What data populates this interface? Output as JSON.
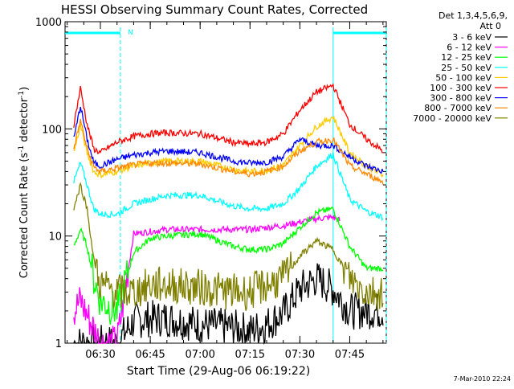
{
  "chart_data": {
    "type": "line",
    "title": "HESSI Observing Summary Count Rates, Corrected",
    "xlabel": "Start Time (29-Aug-06 06:19:22)",
    "ylabel": "Corrected Count Rate (s",
    "ylabel_sup1": "-1",
    "ylabel_mid": " detector",
    "ylabel_sup2": "-1",
    "ylabel_end": ")",
    "yscale": "log",
    "ylim": [
      1,
      1000
    ],
    "xlim": [
      "06:19:22",
      "07:56:00"
    ],
    "x_ticks": [
      "06:30",
      "06:45",
      "07:00",
      "07:15",
      "07:30",
      "07:45"
    ],
    "y_ticks": [
      "1",
      "10",
      "100",
      "1000"
    ],
    "legend_header": [
      "Det 1,3,4,5,6,9,",
      "Att 0"
    ],
    "legend_position": "right",
    "footer_date": "7-Mar-2010 22:24",
    "flag_label": "N",
    "colors": {
      "axes": "#000000",
      "flag": "#00ffff"
    },
    "series": [
      {
        "name": "3 - 6 keV",
        "color": "#000000",
        "x": [
          "06:22",
          "06:30",
          "06:35",
          "06:40",
          "06:45",
          "06:50",
          "07:00",
          "07:10",
          "07:15",
          "07:20",
          "07:25",
          "07:30",
          "07:35",
          "07:40",
          "07:45",
          "07:50",
          "07:55"
        ],
        "values": [
          1.0,
          1.0,
          1.0,
          1.6,
          1.7,
          1.7,
          1.5,
          1.4,
          1.3,
          1.5,
          1.9,
          3.2,
          4.0,
          3.2,
          2.0,
          2.0,
          2.0
        ]
      },
      {
        "name": "6 - 12 keV",
        "color": "#ff00ff",
        "x": [
          "06:22",
          "06:24",
          "06:30",
          "06:35",
          "06:40",
          "06:45",
          "06:50",
          "07:00",
          "07:10",
          "07:15",
          "07:20",
          "07:25",
          "07:30",
          "07:35",
          "07:40",
          "07:42"
        ],
        "values": [
          2.0,
          2.5,
          1.0,
          1.0,
          10.5,
          11.0,
          11.5,
          11.5,
          11.5,
          11.5,
          12.0,
          12.5,
          13.5,
          14.5,
          15.0,
          14.0
        ]
      },
      {
        "name": "12 - 25 keV",
        "color": "#00ff00",
        "x": [
          "06:22",
          "06:24",
          "06:26",
          "06:28",
          "06:30",
          "06:35",
          "06:40",
          "06:45",
          "06:50",
          "07:00",
          "07:10",
          "07:15",
          "07:20",
          "07:25",
          "07:30",
          "07:35",
          "07:40",
          "07:45",
          "07:50",
          "07:55"
        ],
        "values": [
          8.0,
          11.5,
          8.0,
          4.0,
          2.5,
          2.0,
          7.0,
          9.5,
          10.0,
          10.5,
          8.0,
          7.5,
          7.5,
          8.5,
          12.0,
          16.5,
          18.0,
          8.0,
          5.0,
          5.0
        ]
      },
      {
        "name": "25 - 50 keV",
        "color": "#00ffff",
        "x": [
          "06:22",
          "06:24",
          "06:26",
          "06:28",
          "06:30",
          "06:35",
          "06:40",
          "06:45",
          "06:50",
          "07:00",
          "07:10",
          "07:15",
          "07:20",
          "07:25",
          "07:30",
          "07:35",
          "07:40",
          "07:45",
          "07:50",
          "07:55"
        ],
        "values": [
          32,
          48,
          30,
          18,
          16,
          16,
          20,
          22,
          24,
          24,
          19,
          18,
          18,
          20,
          28,
          45,
          58,
          22,
          17,
          15
        ]
      },
      {
        "name": "50 - 100 keV",
        "color": "#ffcc00",
        "x": [
          "06:22",
          "06:24",
          "06:26",
          "06:28",
          "06:30",
          "06:35",
          "06:40",
          "06:45",
          "06:50",
          "07:00",
          "07:10",
          "07:15",
          "07:20",
          "07:25",
          "07:30",
          "07:35",
          "07:40",
          "07:45",
          "07:50",
          "07:55"
        ],
        "values": [
          60,
          108,
          60,
          40,
          37,
          40,
          45,
          48,
          50,
          50,
          42,
          40,
          41,
          46,
          70,
          105,
          130,
          60,
          45,
          37
        ]
      },
      {
        "name": "100 - 300 keV",
        "color": "#ff0000",
        "x": [
          "06:22",
          "06:24",
          "06:26",
          "06:28",
          "06:30",
          "06:35",
          "06:40",
          "06:45",
          "06:50",
          "07:00",
          "07:10",
          "07:15",
          "07:20",
          "07:25",
          "07:30",
          "07:35",
          "07:40",
          "07:45",
          "07:50",
          "07:55"
        ],
        "values": [
          110,
          240,
          110,
          65,
          60,
          75,
          85,
          90,
          92,
          90,
          75,
          72,
          75,
          90,
          150,
          220,
          255,
          110,
          80,
          62
        ]
      },
      {
        "name": "300 - 800 keV",
        "color": "#0000ff",
        "x": [
          "06:22",
          "06:24",
          "06:26",
          "06:28",
          "06:30",
          "06:35",
          "06:40",
          "06:45",
          "06:50",
          "07:00",
          "07:10",
          "07:15",
          "07:20",
          "07:25",
          "07:30",
          "07:35",
          "07:40",
          "07:45",
          "07:50",
          "07:55"
        ],
        "values": [
          80,
          165,
          80,
          48,
          45,
          52,
          57,
          60,
          62,
          60,
          50,
          48,
          49,
          55,
          80,
          70,
          70,
          55,
          45,
          40
        ]
      },
      {
        "name": "800 - 7000 keV",
        "color": "#ff8800",
        "x": [
          "06:22",
          "06:24",
          "06:26",
          "06:28",
          "06:30",
          "06:35",
          "06:40",
          "06:45",
          "06:50",
          "07:00",
          "07:10",
          "07:15",
          "07:20",
          "07:25",
          "07:30",
          "07:35",
          "07:40",
          "07:45",
          "07:50",
          "07:55"
        ],
        "values": [
          65,
          120,
          65,
          44,
          40,
          43,
          46,
          48,
          48,
          47,
          40,
          38,
          40,
          45,
          62,
          75,
          80,
          45,
          38,
          32
        ]
      },
      {
        "name": "7000 - 20000 keV",
        "color": "#808000",
        "x": [
          "06:22",
          "06:24",
          "06:26",
          "06:28",
          "06:30",
          "06:35",
          "06:40",
          "06:45",
          "06:50",
          "07:00",
          "07:10",
          "07:15",
          "07:20",
          "07:25",
          "07:30",
          "07:35",
          "07:40",
          "07:45",
          "07:50",
          "07:55"
        ],
        "values": [
          18,
          30,
          18,
          6,
          3.5,
          3.0,
          3.0,
          3.5,
          3.5,
          3.3,
          3.0,
          3.0,
          3.5,
          4.0,
          6.5,
          9.0,
          7.5,
          4.0,
          3.0,
          3.0
        ]
      }
    ]
  }
}
